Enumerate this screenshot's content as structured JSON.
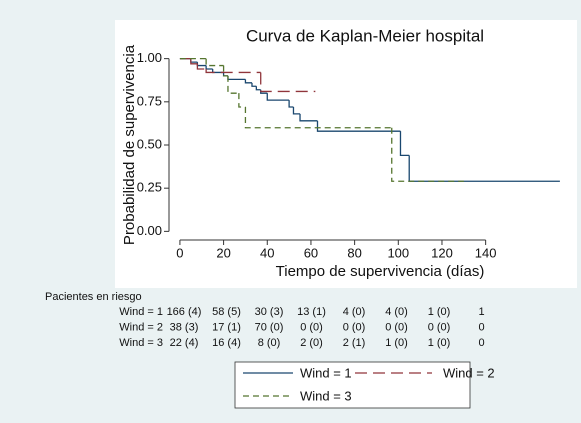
{
  "chart_data": {
    "type": "step",
    "title": "Curva de Kaplan-Meier hospital",
    "x_label": "Tiempo de supervivencia (días)",
    "y_label": "Probabilidad de supervivencia",
    "xlim": [
      -5,
      180
    ],
    "ylim": [
      -0.05,
      1.05
    ],
    "xticks": [
      0,
      20,
      40,
      60,
      80,
      100,
      120,
      140
    ],
    "yticks": [
      {
        "value": 0,
        "label": "0.00"
      },
      {
        "value": 0.25,
        "label": "0.25"
      },
      {
        "value": 0.5,
        "label": "0.50"
      },
      {
        "value": 0.75,
        "label": "0.75"
      },
      {
        "value": 1,
        "label": "1.00"
      }
    ],
    "grid": false,
    "legend_position": "bottom",
    "series": [
      {
        "name": "Wind = 1",
        "color": "#1a476f",
        "dash": "none",
        "x": [
          0,
          5,
          8,
          12,
          15,
          20,
          22,
          30,
          33,
          35,
          37,
          40,
          50,
          52,
          55,
          63,
          101,
          105,
          174
        ],
        "values": [
          1,
          0.98,
          0.96,
          0.94,
          0.92,
          0.9,
          0.88,
          0.86,
          0.84,
          0.82,
          0.8,
          0.76,
          0.72,
          0.68,
          0.64,
          0.58,
          0.44,
          0.29,
          0.29
        ]
      },
      {
        "name": "Wind = 2",
        "color": "#90353b",
        "dash": "12 6",
        "x": [
          0,
          5,
          8,
          12,
          37,
          62
        ],
        "values": [
          1,
          0.97,
          0.94,
          0.92,
          0.81,
          0.81
        ]
      },
      {
        "name": "Wind = 3",
        "color": "#55752f",
        "dash": "6 4",
        "x": [
          0,
          12,
          20,
          22,
          27,
          30,
          97,
          130
        ],
        "values": [
          1,
          0.96,
          0.9,
          0.8,
          0.72,
          0.6,
          0.29,
          0.29
        ]
      }
    ],
    "risk_table": {
      "title": "Pacientes en riesgo",
      "rows": [
        {
          "label": "Wind = 1",
          "cells": [
            "166 (4)",
            "58 (5)",
            "30 (3)",
            "13 (1)",
            "4 (0)",
            "4 (0)",
            "1 (0)",
            "1"
          ]
        },
        {
          "label": "Wind = 2",
          "cells": [
            "38 (3)",
            "17 (1)",
            "70 (0)",
            "0 (0)",
            "0 (0)",
            "0 (0)",
            "0 (0)",
            "0"
          ]
        },
        {
          "label": "Wind = 3",
          "cells": [
            "22 (4)",
            "16 (4)",
            "8 (0)",
            "2 (0)",
            "2 (1)",
            "1 (0)",
            "1 (0)",
            "0"
          ]
        }
      ]
    }
  }
}
